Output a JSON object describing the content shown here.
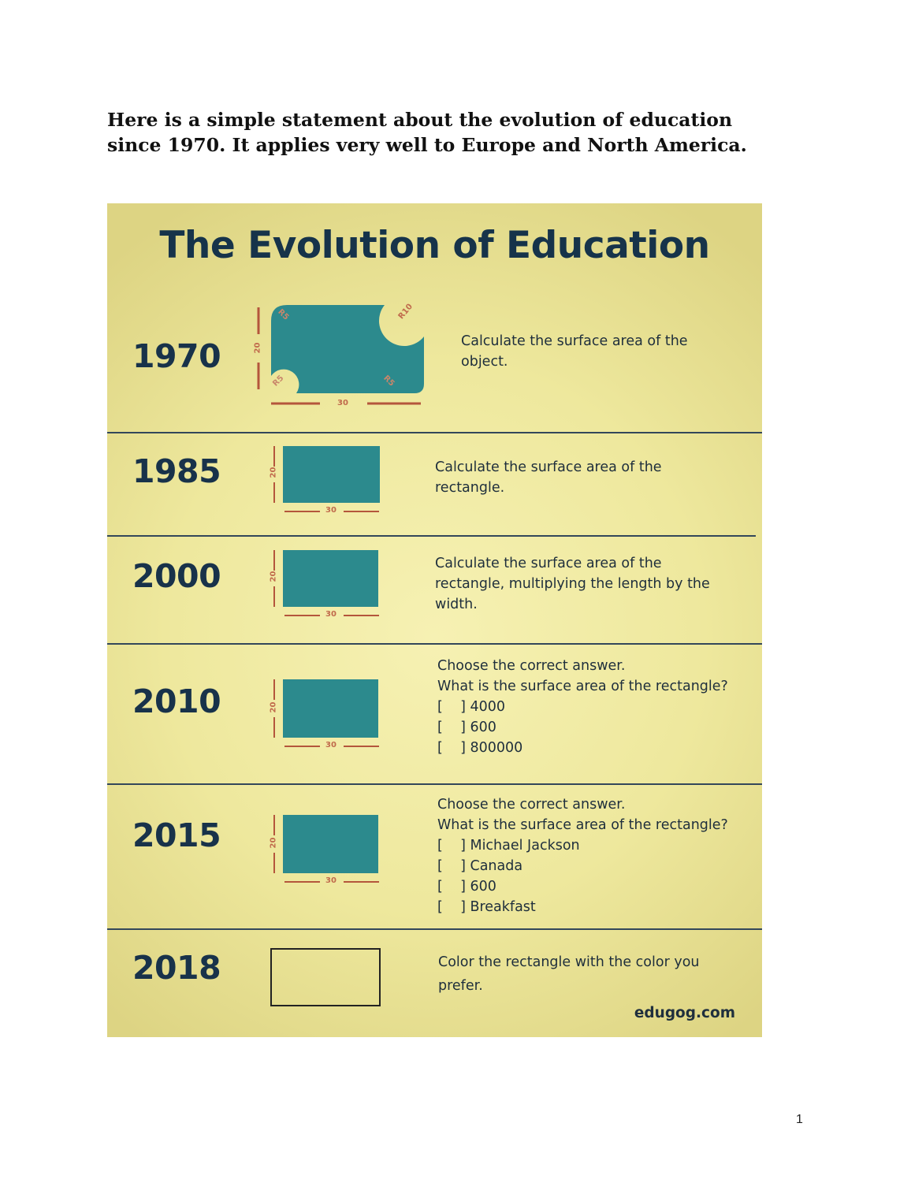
{
  "intro": {
    "line1": "Here is a simple statement about the evolution of education",
    "line2": "since 1970. It applies very well to Europe and North America."
  },
  "poster": {
    "title": "The Evolution of Education",
    "credit": "edugog.com",
    "colors": {
      "background": "#eee89d",
      "shape": "#2c8a8d",
      "dimension": "#b4563c",
      "text": "#16334a"
    },
    "rows": [
      {
        "year": "1970",
        "task": [
          "Calculate the surface area of the",
          "object."
        ],
        "dims": {
          "width": "30",
          "height": "20",
          "radius_tr": "R10",
          "radius_tl": "R5",
          "radius_bl": "R5",
          "radius_br": "R5"
        }
      },
      {
        "year": "1985",
        "task": [
          "Calculate the surface area of the",
          "rectangle."
        ],
        "dims": {
          "width": "30",
          "height": "20"
        }
      },
      {
        "year": "2000",
        "task": [
          "Calculate the surface area of the",
          "rectangle, multiplying the length by the",
          "width."
        ],
        "dims": {
          "width": "30",
          "height": "20"
        }
      },
      {
        "year": "2010",
        "task": [
          "Choose the correct answer.",
          "What is the surface area of the rectangle?",
          "[    ] 4000",
          "[    ] 600",
          "[    ] 800000"
        ],
        "dims": {
          "width": "30",
          "height": "20"
        }
      },
      {
        "year": "2015",
        "task": [
          "Choose the correct answer.",
          "What is the surface area of the rectangle?",
          "[    ] Michael Jackson",
          "[    ] Canada",
          "[    ] 600",
          "[    ] Breakfast"
        ],
        "dims": {
          "width": "30",
          "height": "20"
        }
      },
      {
        "year": "2018",
        "task": [
          "Color the rectangle with the color you",
          "prefer."
        ]
      }
    ]
  },
  "page_number": "1"
}
